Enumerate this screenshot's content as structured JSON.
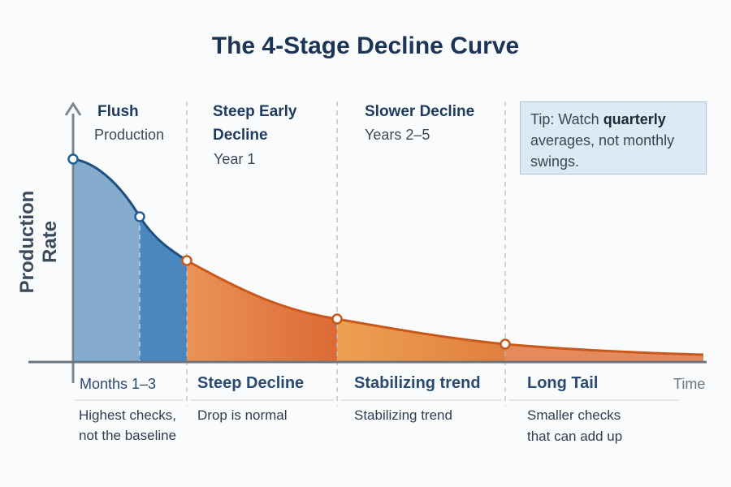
{
  "title": "The 4-Stage Decline Curve",
  "y_axis_label": "Production Rate",
  "x_axis_label": "Time",
  "stages": [
    {
      "heading": "Flush",
      "sub": "Production",
      "bottom_label": "Months 1–3",
      "bottom_note_1": "Highest checks,",
      "bottom_note_2": "not the baseline"
    },
    {
      "heading": "Steep Early",
      "heading_2": "Decline",
      "sub": "Year 1",
      "bottom_label": "Steep Decline",
      "bottom_note_1": "Drop is normal"
    },
    {
      "heading": "Slower Decline",
      "sub": "Years 2–5",
      "bottom_label": "Stabilizing trend",
      "bottom_note_1": "Stabilizing trend"
    },
    {
      "bottom_label": "Long Tail",
      "bottom_note_1": "Smaller checks",
      "bottom_note_2": "that can add up"
    }
  ],
  "tip": {
    "prefix": "Tip: Watch ",
    "bold": "quarterly",
    "rest": " averages, not monthly swings."
  },
  "colors": {
    "blue_fill": "#7fa6c9",
    "blue_dark": "#3f7fb5",
    "blue_line": "#1f4f7e",
    "orange_fill": "#e8894a",
    "orange_line": "#c9581c",
    "text": "#1f3a5f"
  }
}
